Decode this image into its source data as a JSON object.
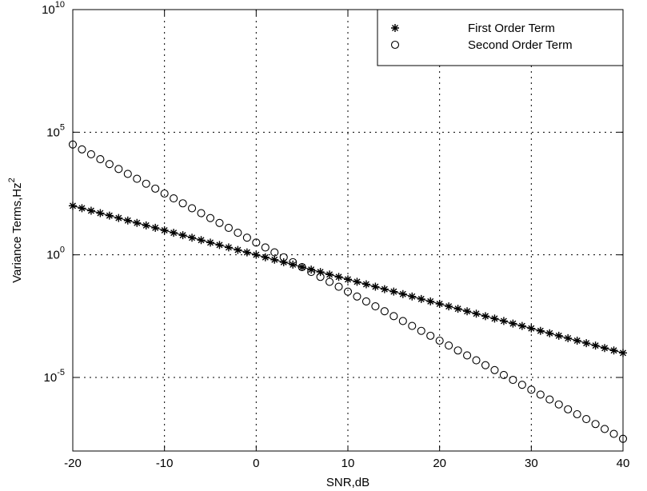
{
  "chart_data": {
    "type": "scatter",
    "xlabel": "SNR,dB",
    "ylabel": "Variance Terms,Hz",
    "ylabel_sup": "2",
    "x": [
      -20,
      -19,
      -18,
      -17,
      -16,
      -15,
      -14,
      -13,
      -12,
      -11,
      -10,
      -9,
      -8,
      -7,
      -6,
      -5,
      -4,
      -3,
      -2,
      -1,
      0,
      1,
      2,
      3,
      4,
      5,
      6,
      7,
      8,
      9,
      10,
      11,
      12,
      13,
      14,
      15,
      16,
      17,
      18,
      19,
      20,
      21,
      22,
      23,
      24,
      25,
      26,
      27,
      28,
      29,
      30,
      31,
      32,
      33,
      34,
      35,
      36,
      37,
      38,
      39,
      40
    ],
    "series": [
      {
        "name": "First Order Term",
        "color": "#000000",
        "marker": "star",
        "line": true,
        "values": [
          100,
          79.4,
          63.1,
          50.1,
          39.8,
          31.6,
          25.1,
          20,
          15.8,
          12.6,
          10,
          7.94,
          6.31,
          5.01,
          3.98,
          3.16,
          2.51,
          2,
          1.58,
          1.26,
          1,
          0.794,
          0.631,
          0.501,
          0.398,
          0.316,
          0.251,
          0.2,
          0.158,
          0.126,
          0.1,
          0.0794,
          0.0631,
          0.0501,
          0.0398,
          0.0316,
          0.0251,
          0.02,
          0.0158,
          0.0126,
          0.01,
          0.00794,
          0.00631,
          0.00501,
          0.00398,
          0.00316,
          0.00251,
          0.002,
          0.00158,
          0.00126,
          0.001,
          0.000794,
          0.000631,
          0.000501,
          0.000398,
          0.000316,
          0.000251,
          0.0002,
          0.000158,
          0.000126,
          0.0001
        ]
      },
      {
        "name": "Second Order Term",
        "color": "#000000",
        "marker": "circle",
        "line": false,
        "values": [
          31600,
          20000,
          12600,
          7940,
          5010,
          3160,
          2000,
          1260,
          794,
          501,
          316,
          200,
          126,
          79.4,
          50.1,
          31.6,
          20,
          12.6,
          7.94,
          5.01,
          3.16,
          2,
          1.26,
          0.794,
          0.501,
          0.316,
          0.2,
          0.126,
          0.0794,
          0.0501,
          0.0316,
          0.02,
          0.0126,
          0.00794,
          0.00501,
          0.00316,
          0.002,
          0.00126,
          0.000794,
          0.000501,
          0.000316,
          0.0002,
          0.000126,
          7.94e-05,
          5.01e-05,
          3.16e-05,
          2e-05,
          1.26e-05,
          7.94e-06,
          5.01e-06,
          3.16e-06,
          2e-06,
          1.26e-06,
          7.94e-07,
          5.01e-07,
          3.16e-07,
          2e-07,
          1.26e-07,
          7.94e-08,
          5.01e-08,
          3.16e-08
        ]
      }
    ],
    "xlim": [
      -20,
      40
    ],
    "xticks": [
      -20,
      -10,
      0,
      10,
      20,
      30,
      40
    ],
    "ylim": [
      1e-08,
      10000000000.0
    ],
    "ylog": true,
    "yticks": [
      {
        "value": 1e-05,
        "label": "10",
        "exp": "-5"
      },
      {
        "value": 1,
        "label": "10",
        "exp": "0"
      },
      {
        "value": 100000,
        "label": "10",
        "exp": "5"
      },
      {
        "value": 10000000000,
        "label": "10",
        "exp": "10"
      }
    ],
    "grid": true,
    "legend": "top-right"
  }
}
